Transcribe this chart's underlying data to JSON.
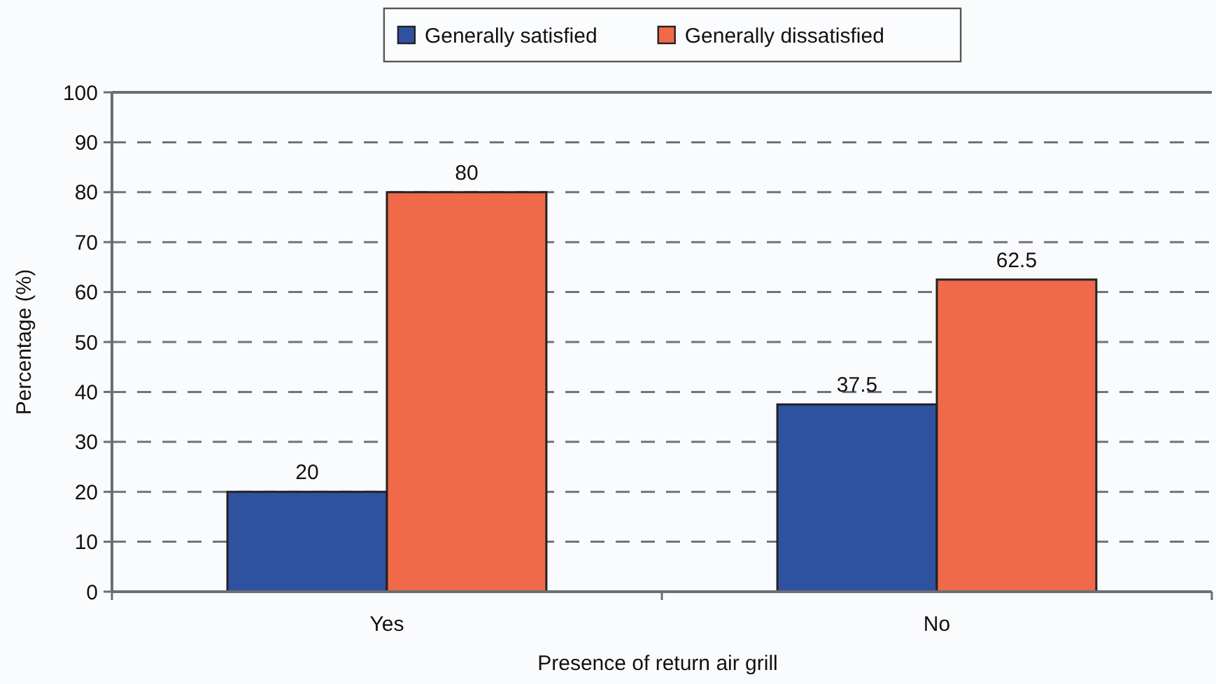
{
  "chart_data": {
    "type": "bar",
    "xlabel": "Presence of return air grill",
    "ylabel": "Percentage (%)",
    "categories": [
      "Yes",
      "No"
    ],
    "series": [
      {
        "name": "Generally satisfied",
        "color": "#2f52a0",
        "values": [
          20,
          37.5
        ]
      },
      {
        "name": "Generally dissatisfied",
        "color": "#f06a4a",
        "values": [
          80,
          62.5
        ]
      }
    ],
    "ylim": [
      0,
      100
    ],
    "yticks": [
      0,
      10,
      20,
      30,
      40,
      50,
      60,
      70,
      80,
      90,
      100
    ],
    "grid": "y",
    "legend": "top",
    "data_labels": true
  }
}
